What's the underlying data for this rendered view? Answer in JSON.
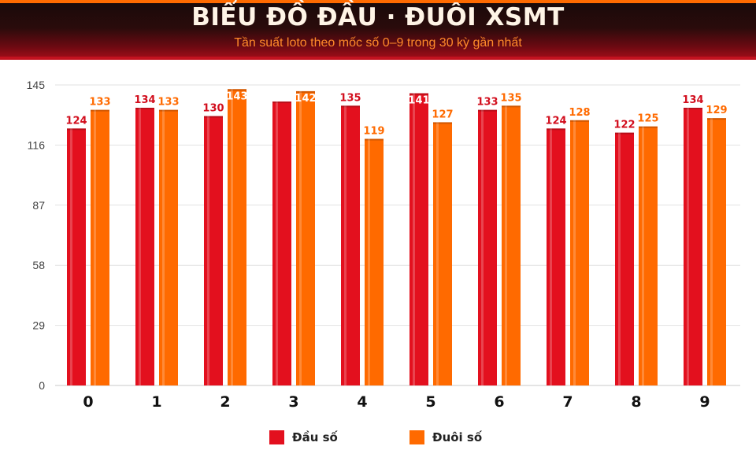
{
  "header": {
    "title": "BIỂU ĐỒ ĐẦU · ĐUÔI XSMT",
    "subtitle": "Tần suất loto theo mốc số 0–9 trong 30 kỳ gần nhất"
  },
  "colors": {
    "dau": "#e3101e",
    "duoi": "#ff6a00",
    "dau_label": "#d20e1d",
    "duoi_label": "#ff6a00",
    "grid": "#e2e2e2"
  },
  "chart_data": {
    "type": "bar",
    "title": "BIỂU ĐỒ ĐẦU · ĐUÔI XSMT",
    "subtitle": "Tần suất loto theo mốc số 0–9 trong 30 kỳ gần nhất",
    "categories": [
      "0",
      "1",
      "2",
      "3",
      "4",
      "5",
      "6",
      "7",
      "8",
      "9"
    ],
    "series": [
      {
        "name": "Đầu số",
        "values": [
          124,
          134,
          130,
          137,
          135,
          141,
          133,
          124,
          122,
          134
        ],
        "value_labels": [
          "124",
          "134",
          "130",
          "",
          "135",
          "141",
          "133",
          "124",
          "122",
          "134"
        ]
      },
      {
        "name": "Đuôi số",
        "values": [
          133,
          133,
          143,
          142,
          119,
          127,
          135,
          128,
          125,
          129
        ],
        "value_labels": [
          "133",
          "133",
          "143",
          "142",
          "119",
          "127",
          "135",
          "128",
          "125",
          "129"
        ]
      }
    ],
    "yticks": [
      0,
      29,
      58,
      87,
      116,
      145
    ],
    "ylim": [
      0,
      145
    ],
    "grid": true,
    "legend_position": "bottom-center"
  }
}
